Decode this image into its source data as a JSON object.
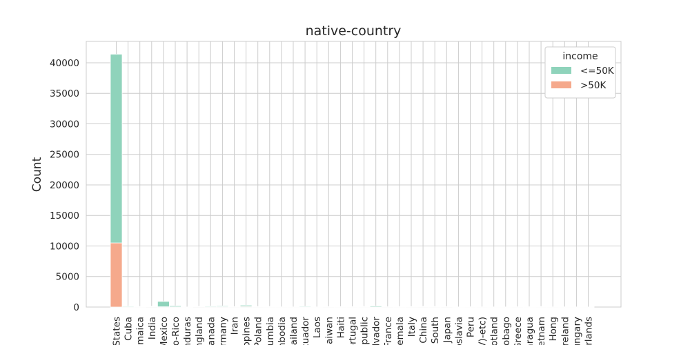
{
  "chart_data": {
    "type": "bar",
    "stacked": true,
    "title": "native-country",
    "xlabel": "",
    "ylabel": "Count",
    "ylim": [
      0,
      43500
    ],
    "yticks": [
      0,
      5000,
      10000,
      15000,
      20000,
      25000,
      30000,
      35000,
      40000
    ],
    "grid": true,
    "legend_position": "top-right",
    "legend_title": "income",
    "categories": [
      "States",
      "Cuba",
      "maica",
      "India",
      "Mexico",
      "o-Rico",
      "nduras",
      "ngland",
      "anada",
      "rmany",
      "Iran",
      "ppines",
      "Poland",
      "umbia",
      "nbodia",
      "ailand",
      "cuador",
      "Laos",
      "aiwan",
      "Haiti",
      "ortugal",
      "public",
      "lvador",
      "France",
      "emala",
      "Italy",
      "China",
      "South",
      "Japan",
      "oslavia",
      "Peru",
      "V)-etc)",
      "otland",
      "obago",
      "Greece",
      "aragua",
      "etnam",
      "Hong",
      "reland",
      "ungary",
      "erlands"
    ],
    "series": [
      {
        "name": "<=50K",
        "color": "#8fd3bb",
        "values": [
          30900,
          110,
          90,
          80,
          870,
          170,
          18,
          80,
          110,
          130,
          50,
          200,
          70,
          90,
          20,
          20,
          110,
          20,
          60,
          60,
          60,
          90,
          150,
          30,
          80,
          70,
          80,
          90,
          60,
          20,
          40,
          20,
          20,
          20,
          30,
          50,
          80,
          20,
          30,
          20,
          10
        ]
      },
      {
        "name": ">50K",
        "color": "#f5a98c",
        "values": [
          10500,
          30,
          10,
          50,
          50,
          30,
          2,
          40,
          50,
          60,
          20,
          100,
          20,
          10,
          10,
          10,
          10,
          5,
          20,
          10,
          10,
          10,
          20,
          20,
          10,
          20,
          30,
          20,
          30,
          5,
          10,
          10,
          5,
          5,
          10,
          5,
          10,
          10,
          5,
          5,
          5
        ]
      }
    ]
  }
}
